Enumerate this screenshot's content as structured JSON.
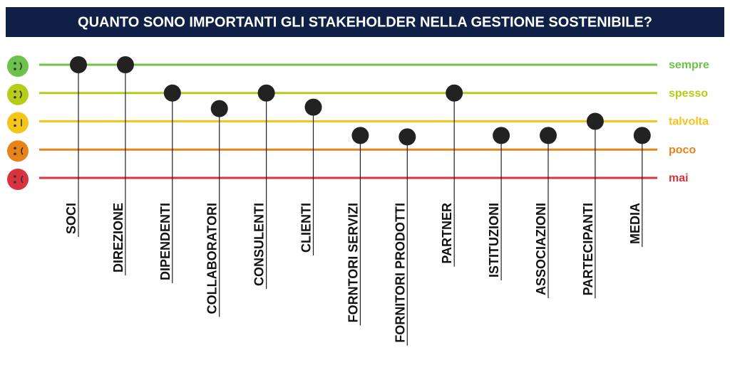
{
  "chart_data": {
    "type": "dot",
    "title": "QUANTO SONO IMPORTANTI GLI STAKEHOLDER NELLA GESTIONE SOSTENIBILE?",
    "categories": [
      "SOCI",
      "DIREZIONE",
      "DIPENDENTI",
      "COLLABORATORI",
      "CONSULENTI",
      "CLIENTI",
      "FORNTORI SERVIZI",
      "FORNITORI PRODOTTI",
      "PARTNER",
      "ISTITUZIONI",
      "ASSOCIAZIONI",
      "PARTECIPANTI",
      "MEDIA"
    ],
    "values": [
      4,
      4,
      3,
      2.45,
      3,
      2.5,
      1.5,
      1.45,
      3,
      1.5,
      1.5,
      2,
      1.5
    ],
    "color": "#222222",
    "ylim": [
      0,
      4
    ],
    "yticks": [
      {
        "value": 0,
        "label": "mai"
      },
      {
        "value": 1,
        "label": "poco"
      },
      {
        "value": 2,
        "label": "talvolta"
      },
      {
        "value": 3,
        "label": "spesso"
      },
      {
        "value": 4,
        "label": "sempre"
      }
    ],
    "tick_colors": [
      "#d9333f",
      "#e8831a",
      "#f5c518",
      "#b5cc18",
      "#6cc24a"
    ]
  }
}
